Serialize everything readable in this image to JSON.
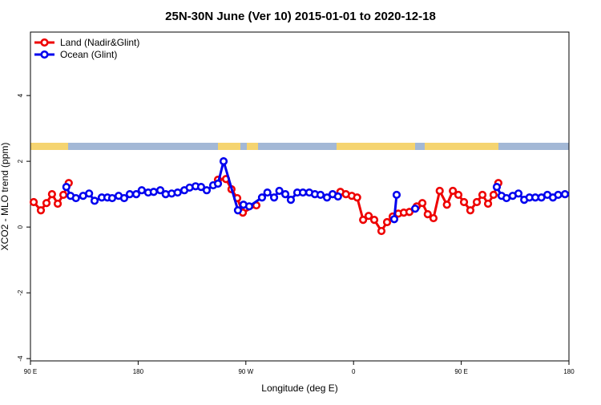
{
  "chart_data": {
    "type": "line",
    "title": "25N-30N June (Ver 10)   2015-01-01 to 2020-12-18",
    "x_label": "Longitude (deg E)",
    "y_label": "XCO2 - MLO trend (ppm)",
    "xlim": [
      90,
      540
    ],
    "ylim": [
      -4.07,
      5.93
    ],
    "xticks": [
      {
        "value": 90,
        "label": "90 E"
      },
      180,
      {
        "value": 270,
        "label": "90 W"
      },
      {
        "value": 360,
        "label": "0"
      },
      {
        "value": 450,
        "label": "90 E"
      },
      {
        "value": 540,
        "label": "180"
      }
    ],
    "yticks": [
      -4,
      -2,
      0,
      2,
      4
    ],
    "legend": "top-left",
    "series": [
      {
        "name": "Land (Nadir&Glint)",
        "color": "#ee0000",
        "x": [
          92.7,
          98.7,
          103.4,
          108,
          112.8,
          117.5,
          122,
          null,
          246.7,
          253.4,
          258,
          262.8,
          267.5,
          278.8,
          null,
          349,
          353.6,
          358.5,
          363,
          368,
          372.6,
          377.3,
          383.3,
          388,
          392.7,
          397.4,
          402,
          406.7,
          412.8,
          417.5,
          422,
          426.8,
          432,
          438,
          443,
          447.6,
          452.3,
          457.6,
          463,
          467.7,
          472.4,
          477,
          481
        ],
        "values": [
          0.76,
          0.51,
          0.73,
          1.0,
          0.71,
          0.98,
          1.34,
          null,
          1.44,
          1.46,
          1.15,
          0.88,
          0.44,
          0.66,
          null,
          1.07,
          1.0,
          0.95,
          0.9,
          0.22,
          0.34,
          0.22,
          -0.12,
          0.15,
          0.32,
          0.41,
          0.44,
          0.46,
          0.63,
          0.73,
          0.39,
          0.27,
          1.1,
          0.68,
          1.1,
          0.98,
          0.76,
          0.51,
          0.76,
          0.98,
          0.71,
          0.98,
          1.34
        ]
      },
      {
        "name": "Ocean (Glint)",
        "color": "#0000ee",
        "x": [
          120,
          123.5,
          128,
          134,
          139,
          143.6,
          149.6,
          154.3,
          158.3,
          163.7,
          168.3,
          173,
          178.4,
          183,
          188.4,
          193,
          198.5,
          203,
          208,
          213,
          218.6,
          223,
          228,
          232.6,
          237.3,
          242.7,
          246.7,
          251.4,
          263.4,
          268,
          272.8,
          283.5,
          288,
          293.6,
          298,
          303,
          307.6,
          313,
          317.7,
          323,
          327.7,
          332.4,
          337.8,
          342.5,
          347,
          null,
          394,
          396,
          null,
          411.5,
          null,
          479.7,
          483.7,
          487.8,
          493,
          497.8,
          502.6,
          507,
          511.9,
          517,
          522,
          526.6,
          531,
          536.7
        ],
        "values": [
          1.22,
          0.95,
          0.88,
          0.95,
          1.02,
          0.8,
          0.9,
          0.9,
          0.88,
          0.95,
          0.88,
          1.0,
          1.0,
          1.12,
          1.05,
          1.07,
          1.12,
          1.0,
          1.02,
          1.05,
          1.12,
          1.2,
          1.24,
          1.22,
          1.12,
          1.27,
          1.32,
          2.0,
          0.51,
          0.68,
          0.63,
          0.9,
          1.05,
          0.9,
          1.1,
          1.0,
          0.83,
          1.05,
          1.05,
          1.05,
          1.0,
          0.98,
          0.9,
          1.0,
          0.93,
          null,
          0.24,
          0.98,
          null,
          0.56,
          null,
          1.22,
          0.95,
          0.88,
          0.95,
          1.02,
          0.83,
          0.9,
          0.9,
          0.9,
          0.98,
          0.9,
          0.98,
          1.0
        ]
      }
    ]
  }
}
